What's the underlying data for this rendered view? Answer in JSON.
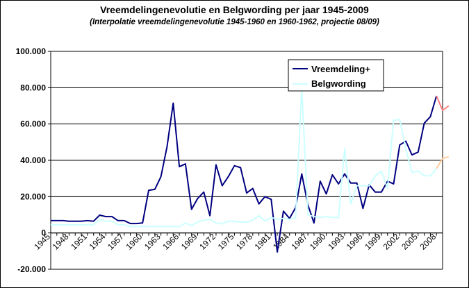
{
  "chart_data": {
    "type": "line",
    "title": "Vreemdelingenevolutie en Belgwording per jaar 1945-2009",
    "subtitle": "(Interpolatie vreemdelingenevolutie 1945-1960 en 1960-1962, projectie 08/09)",
    "xlabel": "",
    "ylabel": "",
    "x_range": [
      1945,
      2009
    ],
    "ylim": [
      -20000,
      100000
    ],
    "y_ticks": [
      -20000,
      0,
      20000,
      40000,
      60000,
      80000,
      100000
    ],
    "y_tick_labels": [
      "-20.000",
      "0",
      "20.000",
      "40.000",
      "60.000",
      "80.000",
      "100.000"
    ],
    "x_ticks": [
      1945,
      1948,
      1951,
      1954,
      1957,
      1960,
      1963,
      1966,
      1969,
      1972,
      1975,
      1978,
      1981,
      1984,
      1987,
      1990,
      1993,
      1996,
      1999,
      2002,
      2005,
      2008
    ],
    "x_tick_labels": [
      "1945",
      "1948",
      "1951",
      "1954",
      "1957",
      "1960",
      "1963",
      "1966",
      "1969",
      "1972",
      "1975",
      "1978",
      "1981",
      "1984",
      "1987",
      "1990",
      "1993",
      "1996",
      "1999",
      "2002",
      "2005",
      "2008"
    ],
    "grid": "horizontal",
    "legend_position": "top-right",
    "series": [
      {
        "name": "Vreemdeling+",
        "color": "#000080",
        "projection_color": "#ff8080",
        "points": [
          [
            1945,
            6800
          ],
          [
            1946,
            6800
          ],
          [
            1947,
            6800
          ],
          [
            1948,
            6500
          ],
          [
            1949,
            6500
          ],
          [
            1950,
            6500
          ],
          [
            1951,
            6800
          ],
          [
            1952,
            6500
          ],
          [
            1953,
            9800
          ],
          [
            1954,
            9000
          ],
          [
            1955,
            9000
          ],
          [
            1956,
            6800
          ],
          [
            1957,
            6800
          ],
          [
            1958,
            5200
          ],
          [
            1959,
            5200
          ],
          [
            1960,
            5500
          ],
          [
            1961,
            23500
          ],
          [
            1962,
            24000
          ],
          [
            1963,
            31000
          ],
          [
            1964,
            47500
          ],
          [
            1965,
            71500
          ],
          [
            1966,
            36500
          ],
          [
            1967,
            38000
          ],
          [
            1968,
            13000
          ],
          [
            1969,
            19000
          ],
          [
            1970,
            22500
          ],
          [
            1971,
            9500
          ],
          [
            1972,
            37500
          ],
          [
            1973,
            26000
          ],
          [
            1974,
            31000
          ],
          [
            1975,
            37000
          ],
          [
            1976,
            36000
          ],
          [
            1977,
            22000
          ],
          [
            1978,
            24500
          ],
          [
            1979,
            16000
          ],
          [
            1980,
            20000
          ],
          [
            1981,
            18500
          ],
          [
            1982,
            -10500
          ],
          [
            1983,
            12000
          ],
          [
            1984,
            8000
          ],
          [
            1985,
            14000
          ],
          [
            1986,
            32500
          ],
          [
            1987,
            15500
          ],
          [
            1988,
            5500
          ],
          [
            1989,
            28500
          ],
          [
            1990,
            21500
          ],
          [
            1991,
            32000
          ],
          [
            1992,
            27000
          ],
          [
            1993,
            32500
          ],
          [
            1994,
            27500
          ],
          [
            1995,
            27500
          ],
          [
            1996,
            13500
          ],
          [
            1997,
            26500
          ],
          [
            1998,
            22500
          ],
          [
            1999,
            22500
          ],
          [
            2000,
            28500
          ],
          [
            2001,
            27000
          ],
          [
            2002,
            48500
          ],
          [
            2003,
            50500
          ],
          [
            2004,
            43000
          ],
          [
            2005,
            44500
          ],
          [
            2006,
            60500
          ],
          [
            2007,
            64000
          ],
          [
            2008,
            75500
          ]
        ],
        "projection_points": [
          [
            2008,
            75500
          ],
          [
            2009,
            67500
          ],
          [
            2010,
            70000
          ]
        ]
      },
      {
        "name": "Belgwording",
        "color": "#ccffff",
        "projection_color": "#ffcc99",
        "points": [
          [
            1945,
            4500
          ],
          [
            1946,
            4500
          ],
          [
            1947,
            4500
          ],
          [
            1948,
            4500
          ],
          [
            1949,
            4500
          ],
          [
            1950,
            4500
          ],
          [
            1951,
            4500
          ],
          [
            1952,
            4500
          ],
          [
            1953,
            7500
          ],
          [
            1954,
            6500
          ],
          [
            1955,
            6500
          ],
          [
            1956,
            4500
          ],
          [
            1957,
            4500
          ],
          [
            1958,
            3500
          ],
          [
            1959,
            3500
          ],
          [
            1960,
            3500
          ],
          [
            1961,
            3500
          ],
          [
            1962,
            3500
          ],
          [
            1963,
            3500
          ],
          [
            1964,
            3500
          ],
          [
            1965,
            3500
          ],
          [
            1966,
            3500
          ],
          [
            1967,
            5500
          ],
          [
            1968,
            4000
          ],
          [
            1969,
            6000
          ],
          [
            1970,
            7000
          ],
          [
            1971,
            7500
          ],
          [
            1972,
            5500
          ],
          [
            1973,
            5000
          ],
          [
            1974,
            6500
          ],
          [
            1975,
            6500
          ],
          [
            1976,
            6000
          ],
          [
            1977,
            6000
          ],
          [
            1978,
            7000
          ],
          [
            1979,
            9500
          ],
          [
            1980,
            6500
          ],
          [
            1981,
            8500
          ],
          [
            1982,
            7500
          ],
          [
            1983,
            8000
          ],
          [
            1984,
            7500
          ],
          [
            1985,
            8500
          ],
          [
            1986,
            80000
          ],
          [
            1987,
            10000
          ],
          [
            1988,
            9000
          ],
          [
            1989,
            8500
          ],
          [
            1990,
            9000
          ],
          [
            1991,
            8500
          ],
          [
            1992,
            8500
          ],
          [
            1993,
            46500
          ],
          [
            1994,
            16000
          ],
          [
            1995,
            26000
          ],
          [
            1996,
            26000
          ],
          [
            1997,
            26000
          ],
          [
            1998,
            31500
          ],
          [
            1999,
            34000
          ],
          [
            2000,
            24500
          ],
          [
            2001,
            62000
          ],
          [
            2002,
            62500
          ],
          [
            2003,
            46000
          ],
          [
            2004,
            33500
          ],
          [
            2005,
            34000
          ],
          [
            2006,
            31500
          ],
          [
            2007,
            31500
          ],
          [
            2008,
            35500
          ]
        ],
        "projection_points": [
          [
            2008,
            35500
          ],
          [
            2009,
            41000
          ],
          [
            2010,
            42000
          ]
        ]
      }
    ]
  }
}
